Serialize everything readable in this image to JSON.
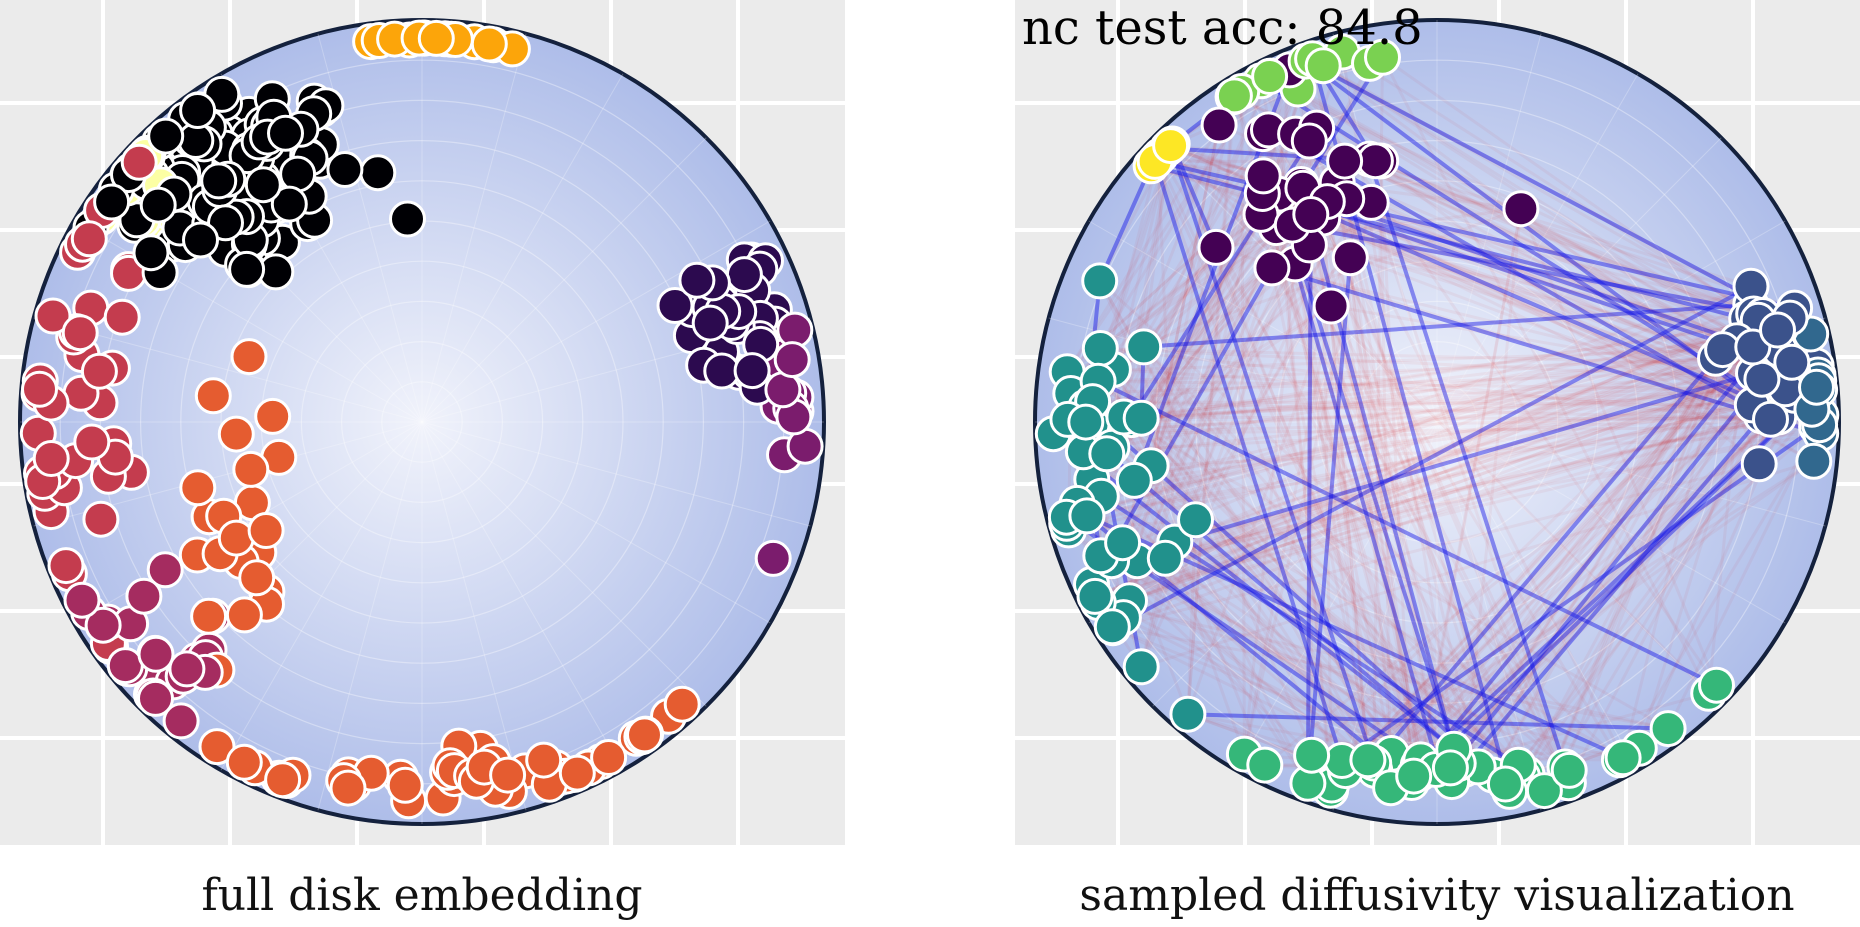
{
  "colors": {
    "panel_bg": "#ebebeb",
    "grid": "#ffffff",
    "disk_edge": "#14213d",
    "disk_inner": "#f1f3fb",
    "disk_outer": "#aebde9",
    "point_edge": "#ffffff",
    "edge_blue": "#1414e6",
    "edge_red": "#d01010"
  },
  "chart_data": [
    {
      "type": "scatter",
      "title": "full disk embedding",
      "xlim": [
        -1,
        1
      ],
      "ylim": [
        -1,
        1
      ],
      "grid": true,
      "colormap": "inferno",
      "palette": [
        "#000004",
        "#2c0a4f",
        "#56106e",
        "#7b1c6d",
        "#a52c60",
        "#c43c4e",
        "#e55c30",
        "#f37818",
        "#fca50a",
        "#f8d13c",
        "#fcffa4"
      ],
      "clusters": [
        {
          "class": "black",
          "color": "#000004",
          "cx": -0.48,
          "cy": 0.6,
          "sx": 0.16,
          "sy": 0.13,
          "n": 130
        },
        {
          "class": "dark-purple",
          "color": "#2c0a4f",
          "cx": 0.78,
          "cy": 0.26,
          "sx": 0.07,
          "sy": 0.1,
          "n": 40
        },
        {
          "class": "magenta-purple",
          "color": "#7b1c6d",
          "cx": 0.92,
          "cy": 0.08,
          "sx": 0.03,
          "sy": 0.1,
          "n": 16
        },
        {
          "class": "crimson",
          "color": "#c43c4e",
          "cx": -0.86,
          "cy": 0.0,
          "sx": 0.08,
          "sy": 0.3,
          "n": 40
        },
        {
          "class": "crimson-low",
          "color": "#a52c60",
          "cx": -0.7,
          "cy": -0.6,
          "sx": 0.1,
          "sy": 0.1,
          "n": 26
        },
        {
          "class": "orange-bottom",
          "color": "#e55c30",
          "cx": 0.15,
          "cy": -0.88,
          "sx": 0.28,
          "sy": 0.04,
          "n": 48
        },
        {
          "class": "orange-diag",
          "color": "#e55c30",
          "cx": -0.45,
          "cy": -0.2,
          "sx": 0.08,
          "sy": 0.18,
          "n": 22
        },
        {
          "class": "gold-top",
          "color": "#fca50a",
          "cx": 0.08,
          "cy": 0.97,
          "sx": 0.1,
          "sy": 0.01,
          "n": 16
        },
        {
          "class": "pale-yellow",
          "color": "#fcffa4",
          "cx": -0.72,
          "cy": 0.65,
          "sx": 0.06,
          "sy": 0.1,
          "n": 12
        }
      ]
    },
    {
      "type": "scatter",
      "title": "sampled diffusivity visualization",
      "annotation": "nc test acc: 84.8",
      "xlim": [
        -1,
        1
      ],
      "ylim": [
        -1,
        1
      ],
      "grid": true,
      "colormap": "viridis",
      "palette": [
        "#440154",
        "#3b528b",
        "#21918c",
        "#5ec962",
        "#fde725"
      ],
      "series_edges": [
        {
          "name": "sampled edges (blue)",
          "color": "#1414e6",
          "count": 60
        },
        {
          "name": "diffusivity edges (red)",
          "color": "#d01010",
          "count": 520
        }
      ],
      "clusters": [
        {
          "class": "purple",
          "color": "#440154",
          "cx": -0.35,
          "cy": 0.55,
          "sx": 0.16,
          "sy": 0.16,
          "n": 34
        },
        {
          "class": "blue-gray",
          "color": "#3b528b",
          "cx": 0.82,
          "cy": 0.18,
          "sx": 0.06,
          "sy": 0.1,
          "n": 34
        },
        {
          "class": "steel",
          "color": "#31688e",
          "cx": 0.96,
          "cy": 0.05,
          "sx": 0.02,
          "sy": 0.12,
          "n": 12
        },
        {
          "class": "teal",
          "color": "#21918c",
          "cx": -0.82,
          "cy": -0.25,
          "sx": 0.08,
          "sy": 0.3,
          "n": 44
        },
        {
          "class": "green",
          "color": "#35b779",
          "cx": 0.05,
          "cy": -0.87,
          "sx": 0.28,
          "sy": 0.04,
          "n": 44
        },
        {
          "class": "lime",
          "color": "#7ad151",
          "cx": -0.3,
          "cy": 0.88,
          "sx": 0.12,
          "sy": 0.05,
          "n": 12
        },
        {
          "class": "yellow",
          "color": "#fde725",
          "cx": -0.78,
          "cy": 0.72,
          "sx": 0.05,
          "sy": 0.07,
          "n": 8
        }
      ]
    }
  ]
}
